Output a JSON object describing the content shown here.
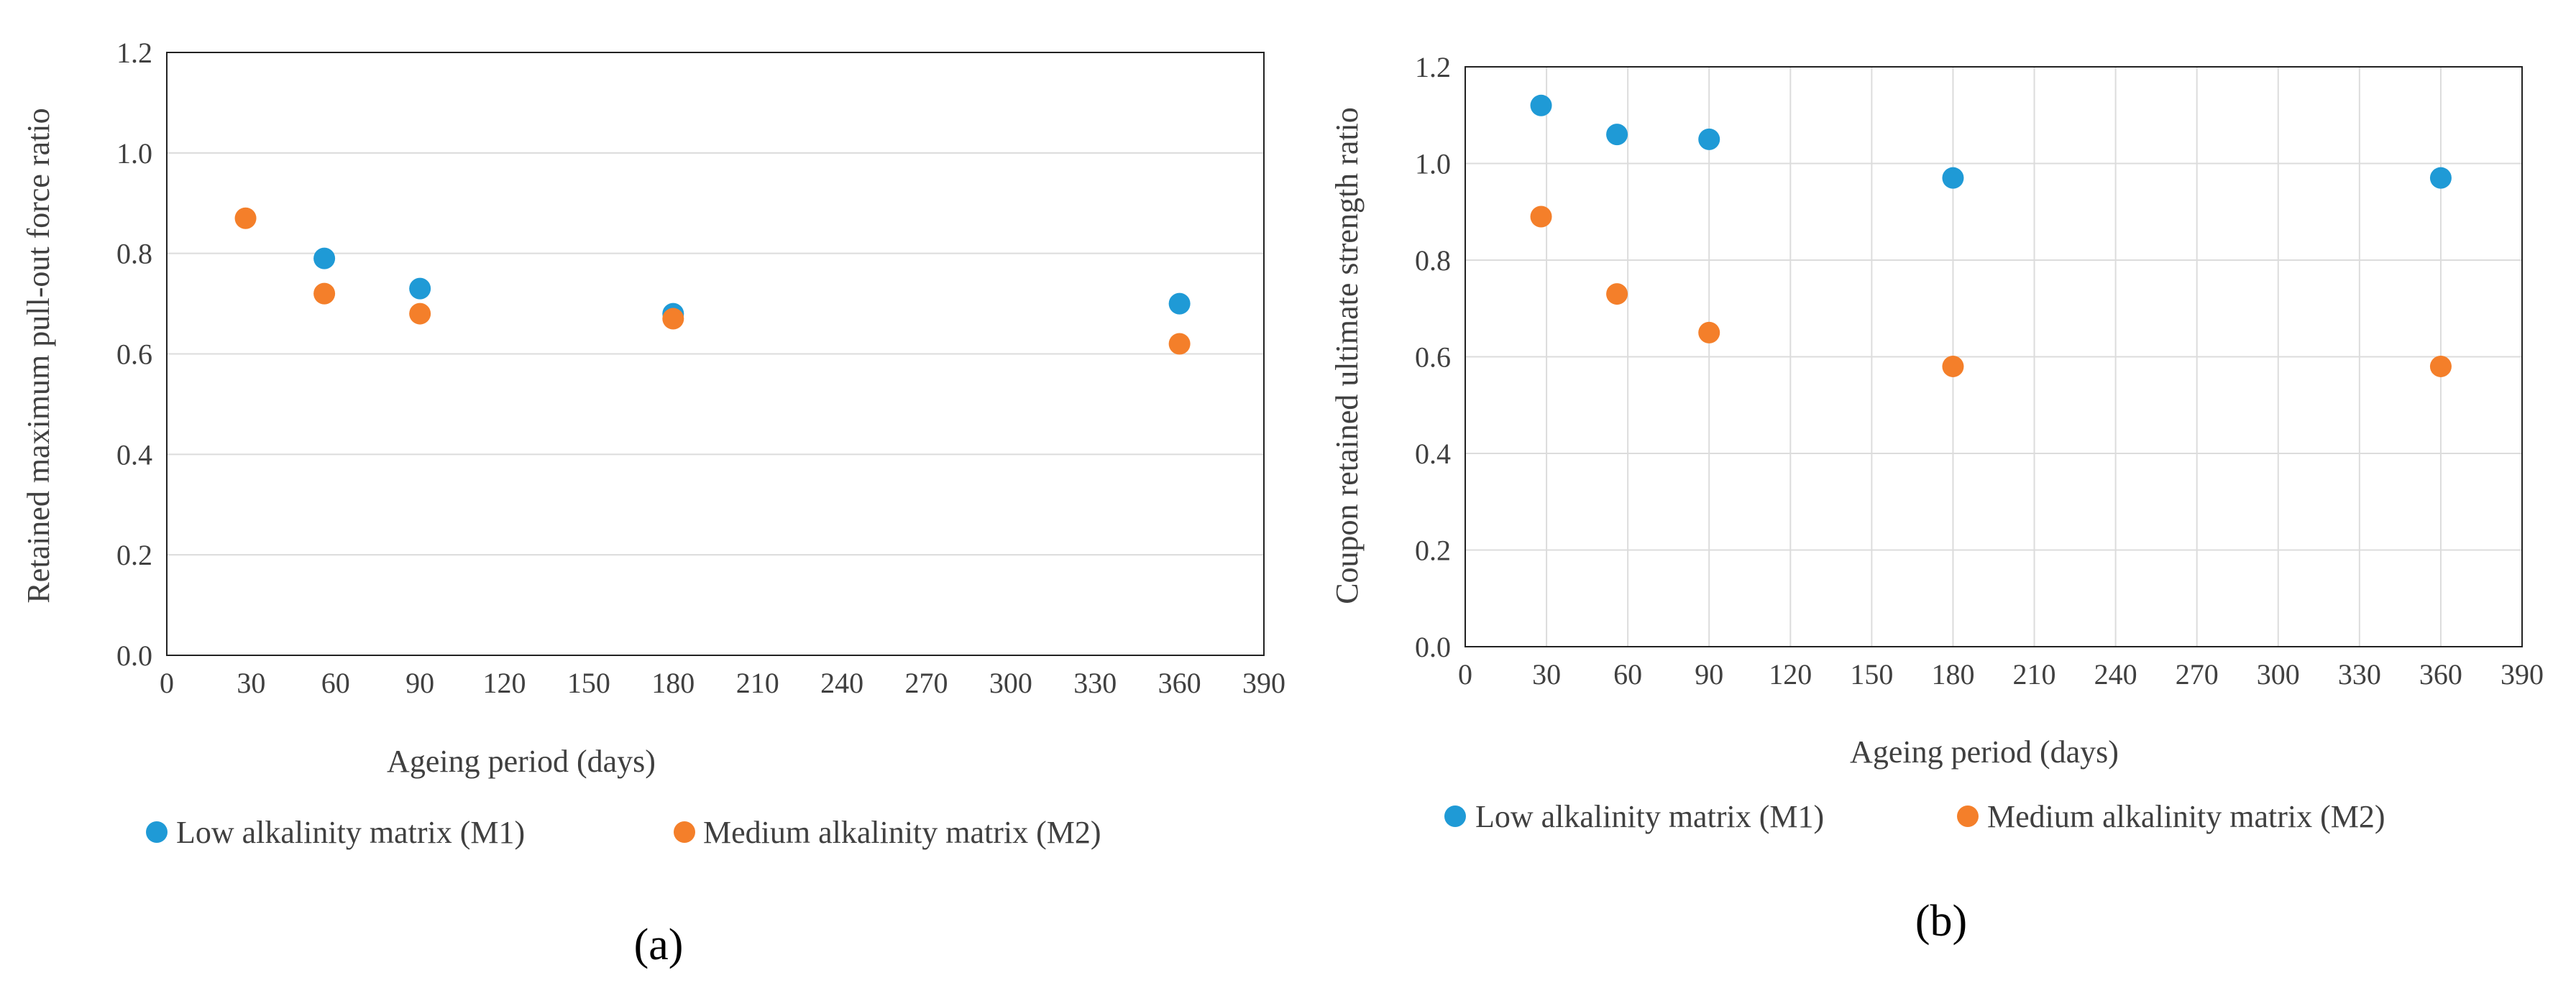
{
  "chart_data": [
    {
      "type": "scatter",
      "panel_label": "(a)",
      "xlabel": "Ageing period (days)",
      "ylabel": "Retained maximum pull-out force ratio",
      "xlim": [
        0,
        390
      ],
      "ylim": [
        0,
        1.2
      ],
      "xticks": [
        "0",
        "30",
        "60",
        "90",
        "120",
        "150",
        "180",
        "210",
        "240",
        "270",
        "300",
        "330",
        "360",
        "390"
      ],
      "yticks": [
        "0.0",
        "0.2",
        "0.4",
        "0.6",
        "0.8",
        "1.0",
        "1.2"
      ],
      "legend_position": "bottom",
      "series": [
        {
          "name": "Low alkalinity matrix (M1)",
          "color": "#1f9ad6",
          "x": [
            56,
            90,
            180,
            360
          ],
          "y": [
            0.79,
            0.73,
            0.68,
            0.7
          ]
        },
        {
          "name": "Medium alkalinity matrix (M2)",
          "color": "#f47f2a",
          "x": [
            28,
            56,
            90,
            180,
            360
          ],
          "y": [
            0.87,
            0.72,
            0.68,
            0.67,
            0.62
          ]
        }
      ]
    },
    {
      "type": "scatter",
      "panel_label": "(b)",
      "xlabel": "Ageing period (days)",
      "ylabel": "Coupon retained ultimate strength ratio",
      "xlim": [
        0,
        390
      ],
      "ylim": [
        0,
        1.2
      ],
      "xticks": [
        "0",
        "30",
        "60",
        "90",
        "120",
        "150",
        "180",
        "210",
        "240",
        "270",
        "300",
        "330",
        "360",
        "390"
      ],
      "yticks": [
        "0.0",
        "0.2",
        "0.4",
        "0.6",
        "0.8",
        "1.0",
        "1.2"
      ],
      "legend_position": "bottom",
      "series": [
        {
          "name": "Low alkalinity matrix (M1)",
          "color": "#1f9ad6",
          "x": [
            28,
            56,
            90,
            180,
            360
          ],
          "y": [
            1.12,
            1.06,
            1.05,
            0.97,
            0.97
          ]
        },
        {
          "name": "Medium alkalinity matrix (M2)",
          "color": "#f47f2a",
          "x": [
            28,
            56,
            90,
            180,
            360
          ],
          "y": [
            0.89,
            0.73,
            0.65,
            0.58,
            0.58
          ]
        }
      ]
    }
  ]
}
